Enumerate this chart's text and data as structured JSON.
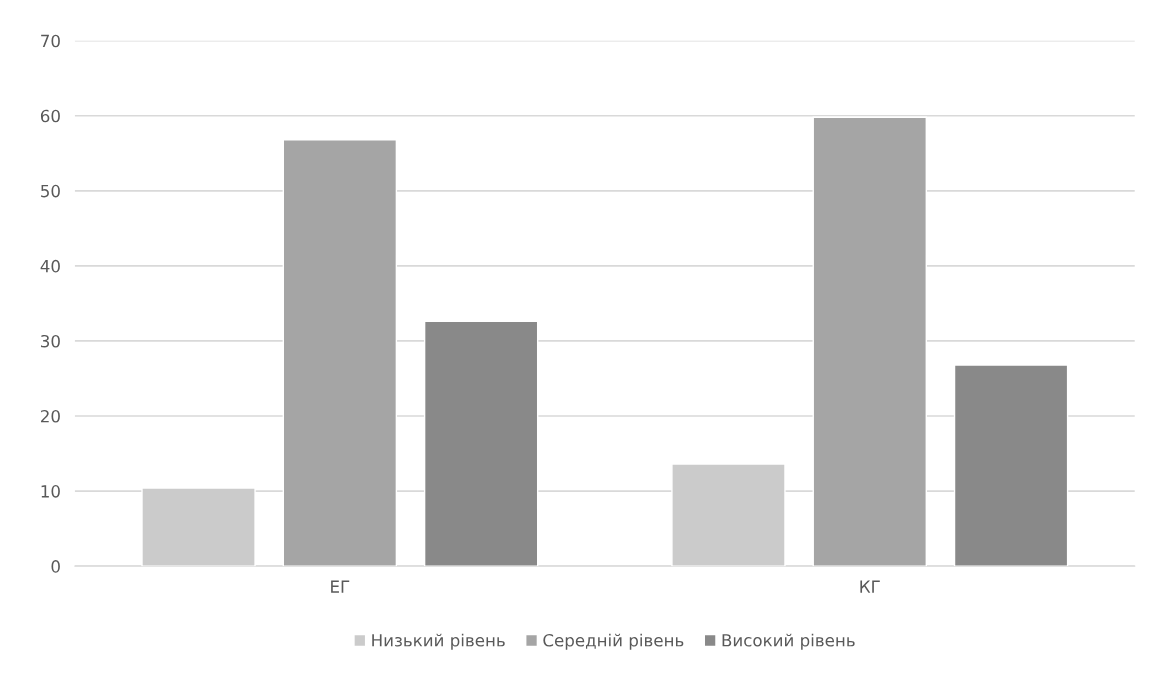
{
  "chart_data": {
    "type": "bar",
    "categories": [
      "ЕГ",
      "КГ"
    ],
    "series": [
      {
        "name": "Низький рівень",
        "color": "#cbcbcb",
        "values": [
          10.4,
          13.6
        ]
      },
      {
        "name": "Середній рівень",
        "color": "#a5a5a5",
        "values": [
          56.8,
          59.8
        ]
      },
      {
        "name": "Високий рівень",
        "color": "#898989",
        "values": [
          32.6,
          26.8
        ]
      }
    ],
    "ylim": [
      0,
      70
    ],
    "yticks": [
      0,
      10,
      20,
      30,
      40,
      50,
      60,
      70
    ],
    "grid": "y",
    "legend": "bottom"
  }
}
